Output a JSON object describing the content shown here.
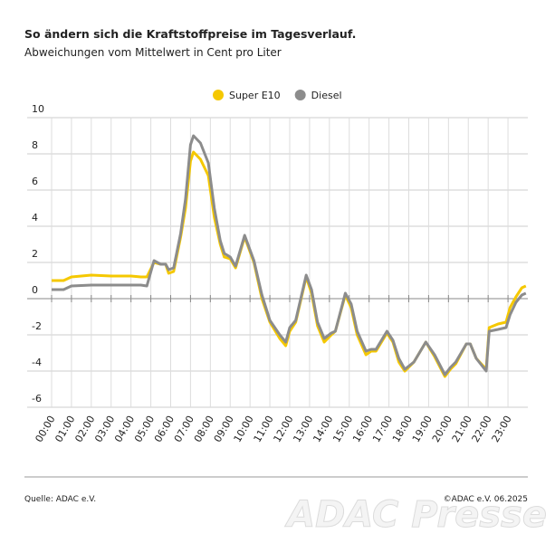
{
  "chart_data": {
    "type": "line",
    "title": "So ändern sich die Kraftstoffpreise im Tagesverlauf.",
    "subtitle": "Abweichungen vom Mittelwert in Cent pro Liter",
    "x": [
      0,
      0.6,
      1,
      2,
      3,
      4,
      4.5,
      4.8,
      5.16,
      5.5,
      5.75,
      5.9,
      6.15,
      6.5,
      6.75,
      7,
      7.15,
      7.5,
      7.9,
      8.2,
      8.5,
      8.7,
      9,
      9.27,
      9.73,
      10.2,
      10.6,
      11,
      11.5,
      11.8,
      12,
      12.3,
      12.83,
      13.1,
      13.4,
      13.74,
      14.1,
      14.3,
      14.8,
      15.1,
      15.4,
      15.84,
      16.1,
      16.35,
      16.9,
      17.2,
      17.5,
      17.8,
      18.26,
      18.86,
      19.3,
      19.82,
      20.1,
      20.37,
      20.9,
      21.1,
      21.4,
      21.9,
      22.05,
      22.5,
      22.9,
      23.1,
      23.4,
      23.7,
      23.9
    ],
    "series": [
      {
        "name": "Super E10",
        "color": "#f5c800",
        "values": [
          1.0,
          1.0,
          1.2,
          1.3,
          1.25,
          1.25,
          1.2,
          1.2,
          2.0,
          1.9,
          1.9,
          1.4,
          1.5,
          3.4,
          5.0,
          7.6,
          8.1,
          7.7,
          6.8,
          4.5,
          3.0,
          2.3,
          2.2,
          1.7,
          3.4,
          2.0,
          0.0,
          -1.3,
          -2.2,
          -2.6,
          -1.8,
          -1.3,
          1.2,
          0.3,
          -1.5,
          -2.4,
          -2.0,
          -1.8,
          0.2,
          -0.5,
          -2.0,
          -3.1,
          -2.9,
          -2.9,
          -1.9,
          -2.4,
          -3.5,
          -4.0,
          -3.5,
          -2.4,
          -3.2,
          -4.3,
          -3.9,
          -3.6,
          -2.5,
          -2.5,
          -3.3,
          -3.9,
          -1.6,
          -1.4,
          -1.3,
          -0.5,
          0.1,
          0.6,
          0.7
        ]
      },
      {
        "name": "Diesel",
        "color": "#8c8c8c",
        "values": [
          0.5,
          0.5,
          0.7,
          0.75,
          0.75,
          0.75,
          0.75,
          0.7,
          2.1,
          1.9,
          1.9,
          1.6,
          1.7,
          3.6,
          5.5,
          8.5,
          9.0,
          8.6,
          7.5,
          5.0,
          3.2,
          2.5,
          2.3,
          1.8,
          3.5,
          2.1,
          0.2,
          -1.2,
          -2.0,
          -2.4,
          -1.6,
          -1.2,
          1.3,
          0.5,
          -1.3,
          -2.2,
          -1.9,
          -1.8,
          0.3,
          -0.3,
          -1.8,
          -2.9,
          -2.8,
          -2.8,
          -1.8,
          -2.3,
          -3.3,
          -3.9,
          -3.5,
          -2.4,
          -3.1,
          -4.2,
          -3.8,
          -3.5,
          -2.5,
          -2.5,
          -3.3,
          -4.0,
          -1.8,
          -1.7,
          -1.6,
          -0.9,
          -0.2,
          0.2,
          0.3
        ]
      }
    ],
    "xlim": [
      0,
      24
    ],
    "xticks": [
      {
        "value": 0,
        "label": "00:00"
      },
      {
        "value": 1,
        "label": "01:00"
      },
      {
        "value": 2,
        "label": "02:00"
      },
      {
        "value": 3,
        "label": "03:00"
      },
      {
        "value": 4,
        "label": "04:00"
      },
      {
        "value": 5,
        "label": "05:00"
      },
      {
        "value": 6,
        "label": "06:00"
      },
      {
        "value": 7,
        "label": "07:00"
      },
      {
        "value": 8,
        "label": "08:00"
      },
      {
        "value": 9,
        "label": "09:00"
      },
      {
        "value": 10,
        "label": "10:00"
      },
      {
        "value": 11,
        "label": "11:00"
      },
      {
        "value": 12,
        "label": "12:00"
      },
      {
        "value": 13,
        "label": "13:00"
      },
      {
        "value": 14,
        "label": "14:00"
      },
      {
        "value": 15,
        "label": "15:00"
      },
      {
        "value": 16,
        "label": "16:00"
      },
      {
        "value": 17,
        "label": "17:00"
      },
      {
        "value": 18,
        "label": "18:00"
      },
      {
        "value": 19,
        "label": "19:00"
      },
      {
        "value": 20,
        "label": "20:00"
      },
      {
        "value": 21,
        "label": "21:00"
      },
      {
        "value": 22,
        "label": "22:00"
      },
      {
        "value": 23,
        "label": "23:00"
      }
    ],
    "ylim": [
      -6,
      10
    ],
    "yticks": [
      10,
      8,
      6,
      4,
      2,
      0,
      -2,
      -4,
      -6
    ],
    "grid": true,
    "legend": "top",
    "source": "Quelle: ADAC e.V.",
    "copyright": "©ADAC e.V.  06.2025",
    "watermark": "ADAC Presse"
  }
}
